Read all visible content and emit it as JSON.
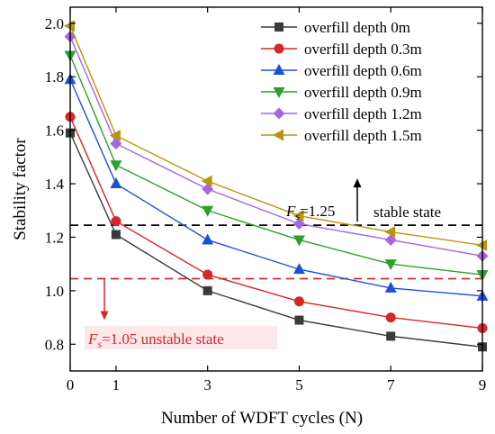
{
  "chart_data": {
    "type": "line",
    "xlabel": "Number of WDFT cycles (N)",
    "ylabel": "Stability factor",
    "x": [
      0,
      1,
      3,
      5,
      7,
      9
    ],
    "xticks": [
      "0",
      "1",
      "3",
      "5",
      "7",
      "9"
    ],
    "yticks": [
      "0.8",
      "1.0",
      "1.2",
      "1.4",
      "1.6",
      "1.8",
      "2.0"
    ],
    "xlim": [
      0,
      9
    ],
    "ylim": [
      0.7,
      2.06
    ],
    "grid": false,
    "legend_position": "top-right",
    "series": [
      {
        "name": "overfill depth 0m",
        "values": [
          1.59,
          1.21,
          1.0,
          0.89,
          0.83,
          0.79
        ],
        "color": "#3a3a3a",
        "marker": "square"
      },
      {
        "name": "overfill depth 0.3m",
        "values": [
          1.65,
          1.26,
          1.06,
          0.96,
          0.9,
          0.86
        ],
        "color": "#d62728",
        "marker": "circle"
      },
      {
        "name": "overfill depth 0.6m",
        "values": [
          1.79,
          1.4,
          1.19,
          1.08,
          1.01,
          0.98
        ],
        "color": "#1f4fd8",
        "marker": "triangle-up"
      },
      {
        "name": "overfill depth 0.9m",
        "values": [
          1.88,
          1.47,
          1.3,
          1.19,
          1.1,
          1.06
        ],
        "color": "#2ca02c",
        "marker": "triangle-down"
      },
      {
        "name": "overfill depth 1.2m",
        "values": [
          1.95,
          1.55,
          1.38,
          1.25,
          1.19,
          1.13
        ],
        "color": "#a566e0",
        "marker": "diamond"
      },
      {
        "name": "overfill depth 1.5m",
        "values": [
          1.99,
          1.58,
          1.41,
          1.28,
          1.22,
          1.17
        ],
        "color": "#b8960c",
        "marker": "triangle-left"
      }
    ],
    "reference_lines": [
      {
        "y": 1.245,
        "color": "#000000",
        "style": "dashed",
        "label_main": "F",
        "label_sub": "s",
        "label_rest": "=1.25",
        "label_state": "stable state",
        "arrow": "up"
      },
      {
        "y": 1.045,
        "color": "#d62728",
        "style": "dashed",
        "label_main": "F",
        "label_sub": "s",
        "label_rest": "=1.05 unstable state",
        "arrow": "down"
      }
    ]
  }
}
